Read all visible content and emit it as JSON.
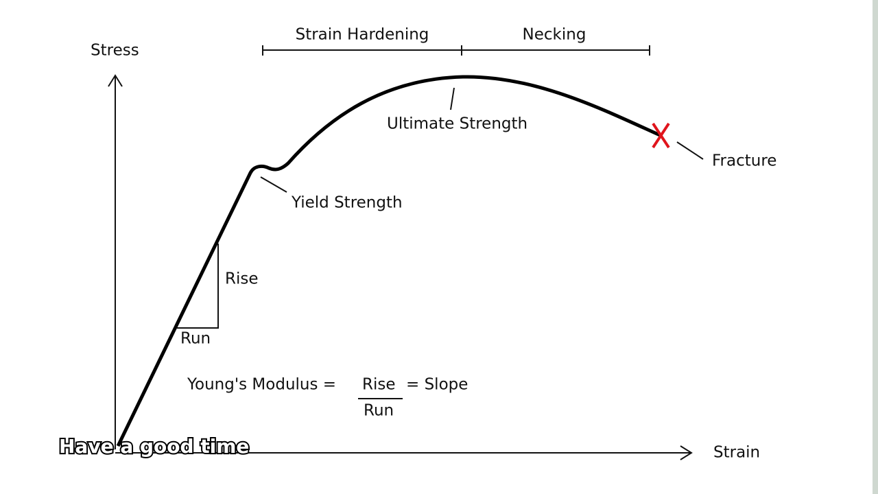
{
  "axes": {
    "y_label": "Stress",
    "x_label": "Strain"
  },
  "regions": [
    "Strain Hardening",
    "Necking"
  ],
  "annotations": {
    "yield": "Yield Strength",
    "ultimate": "Ultimate Strength",
    "fracture": "Fracture"
  },
  "triangle": {
    "rise": "Rise",
    "run": "Run"
  },
  "formula": {
    "lhs": "Young's Modulus =",
    "numerator": "Rise",
    "rhs": "= Slope",
    "denominator": "Run"
  },
  "subtitle": "Have a good time"
}
